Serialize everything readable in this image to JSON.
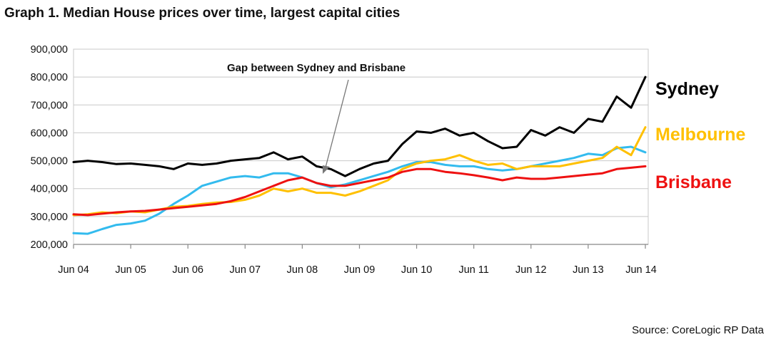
{
  "chart_data": {
    "type": "line",
    "title": "Graph 1.  Median House prices over time, largest capital cities",
    "source": "Source: CoreLogic RP Data",
    "annotation": "Gap between Sydney and Brisbane",
    "xlabel": "",
    "ylabel": "",
    "ylim": [
      200000,
      900000
    ],
    "yticks": [
      {
        "value": 200000,
        "label": "200,000"
      },
      {
        "value": 300000,
        "label": "300,000"
      },
      {
        "value": 400000,
        "label": "400,000"
      },
      {
        "value": 500000,
        "label": "500,000"
      },
      {
        "value": 600000,
        "label": "600,000"
      },
      {
        "value": 700000,
        "label": "700,000"
      },
      {
        "value": 800000,
        "label": "800,000"
      },
      {
        "value": 900000,
        "label": "900,000"
      }
    ],
    "xlim": [
      "Jun 04",
      "Jun 14"
    ],
    "xticks": [
      "Jun 04",
      "Jun 05",
      "Jun 06",
      "Jun 07",
      "Jun 08",
      "Jun 09",
      "Jun 10",
      "Jun 11",
      "Jun 12",
      "Jun 13",
      "Jun 14"
    ],
    "grid": true,
    "legend": "inline-right",
    "colors": {
      "Sydney": "#000000",
      "Melbourne": "#ffc000",
      "Brisbane": "#ee1111",
      "series4": "#33bbee",
      "grid": "#c8c8c8",
      "axis": "#888888",
      "arrow": "#777777"
    },
    "series": [
      {
        "name": "Sydney",
        "x": [
          "2004-06",
          "2004-09",
          "2004-12",
          "2005-03",
          "2005-06",
          "2005-09",
          "2005-12",
          "2006-03",
          "2006-06",
          "2006-09",
          "2006-12",
          "2007-03",
          "2007-06",
          "2007-09",
          "2007-12",
          "2008-03",
          "2008-06",
          "2008-09",
          "2008-12",
          "2009-03",
          "2009-06",
          "2009-09",
          "2009-12",
          "2010-03",
          "2010-06",
          "2010-09",
          "2010-12",
          "2011-03",
          "2011-06",
          "2011-09",
          "2011-12",
          "2012-03",
          "2012-06",
          "2012-09",
          "2012-12",
          "2013-03",
          "2013-06",
          "2013-09",
          "2013-12",
          "2014-03",
          "2014-06"
        ],
        "values": [
          495000,
          500000,
          495000,
          488000,
          490000,
          485000,
          480000,
          470000,
          490000,
          485000,
          490000,
          500000,
          505000,
          510000,
          530000,
          505000,
          515000,
          480000,
          470000,
          445000,
          470000,
          490000,
          500000,
          560000,
          605000,
          600000,
          615000,
          590000,
          600000,
          570000,
          545000,
          550000,
          610000,
          590000,
          620000,
          600000,
          650000,
          640000,
          730000,
          690000,
          800000
        ]
      },
      {
        "name": "Melbourne",
        "x": [
          "2004-06",
          "2004-09",
          "2004-12",
          "2005-03",
          "2005-06",
          "2005-09",
          "2005-12",
          "2006-03",
          "2006-06",
          "2006-09",
          "2006-12",
          "2007-03",
          "2007-06",
          "2007-09",
          "2007-12",
          "2008-03",
          "2008-06",
          "2008-09",
          "2008-12",
          "2009-03",
          "2009-06",
          "2009-09",
          "2009-12",
          "2010-03",
          "2010-06",
          "2010-09",
          "2010-12",
          "2011-03",
          "2011-06",
          "2011-09",
          "2011-12",
          "2012-03",
          "2012-06",
          "2012-09",
          "2012-12",
          "2013-03",
          "2013-06",
          "2013-09",
          "2013-12",
          "2014-03",
          "2014-06"
        ],
        "values": [
          305000,
          308000,
          315000,
          312000,
          318000,
          315000,
          325000,
          335000,
          338000,
          345000,
          350000,
          352000,
          360000,
          375000,
          400000,
          390000,
          400000,
          385000,
          385000,
          375000,
          390000,
          410000,
          430000,
          470000,
          490000,
          500000,
          505000,
          520000,
          500000,
          485000,
          490000,
          470000,
          480000,
          480000,
          480000,
          490000,
          500000,
          510000,
          550000,
          520000,
          620000
        ]
      },
      {
        "name": "Brisbane",
        "x": [
          "2004-06",
          "2004-09",
          "2004-12",
          "2005-03",
          "2005-06",
          "2005-09",
          "2005-12",
          "2006-03",
          "2006-06",
          "2006-09",
          "2006-12",
          "2007-03",
          "2007-06",
          "2007-09",
          "2007-12",
          "2008-03",
          "2008-06",
          "2008-09",
          "2008-12",
          "2009-03",
          "2009-06",
          "2009-09",
          "2009-12",
          "2010-03",
          "2010-06",
          "2010-09",
          "2010-12",
          "2011-03",
          "2011-06",
          "2011-09",
          "2011-12",
          "2012-03",
          "2012-06",
          "2012-09",
          "2012-12",
          "2013-03",
          "2013-06",
          "2013-09",
          "2013-12",
          "2014-03",
          "2014-06"
        ],
        "values": [
          308000,
          305000,
          310000,
          315000,
          318000,
          320000,
          325000,
          330000,
          335000,
          340000,
          345000,
          355000,
          370000,
          390000,
          410000,
          430000,
          440000,
          420000,
          410000,
          410000,
          420000,
          430000,
          440000,
          460000,
          470000,
          470000,
          460000,
          455000,
          448000,
          440000,
          430000,
          440000,
          435000,
          435000,
          440000,
          445000,
          450000,
          455000,
          470000,
          475000,
          480000
        ]
      },
      {
        "name": "",
        "x": [
          "2004-06",
          "2004-09",
          "2004-12",
          "2005-03",
          "2005-06",
          "2005-09",
          "2005-12",
          "2006-03",
          "2006-06",
          "2006-09",
          "2006-12",
          "2007-03",
          "2007-06",
          "2007-09",
          "2007-12",
          "2008-03",
          "2008-06",
          "2008-09",
          "2008-12",
          "2009-03",
          "2009-06",
          "2009-09",
          "2009-12",
          "2010-03",
          "2010-06",
          "2010-09",
          "2010-12",
          "2011-03",
          "2011-06",
          "2011-09",
          "2011-12",
          "2012-03",
          "2012-06",
          "2012-09",
          "2012-12",
          "2013-03",
          "2013-06",
          "2013-09",
          "2013-12",
          "2014-03",
          "2014-06"
        ],
        "values": [
          240000,
          238000,
          255000,
          270000,
          275000,
          285000,
          310000,
          345000,
          375000,
          410000,
          425000,
          440000,
          445000,
          440000,
          455000,
          455000,
          440000,
          420000,
          405000,
          415000,
          430000,
          445000,
          460000,
          480000,
          495000,
          495000,
          485000,
          480000,
          480000,
          470000,
          465000,
          470000,
          480000,
          490000,
          500000,
          510000,
          525000,
          520000,
          545000,
          550000,
          530000
        ]
      }
    ]
  }
}
